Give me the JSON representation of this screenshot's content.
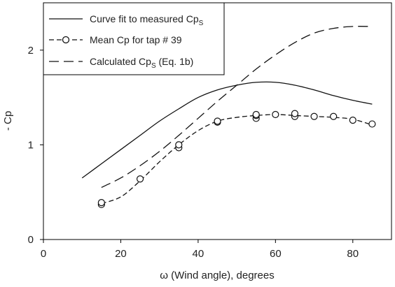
{
  "chart_data": {
    "type": "line",
    "xlabel": "ω (Wind angle), degrees",
    "ylabel": "- Cp",
    "xlim": [
      0,
      90
    ],
    "ylim": [
      0,
      2.5
    ],
    "xticks": [
      0,
      20,
      40,
      60,
      80
    ],
    "yticks": [
      0,
      1,
      2
    ],
    "grid": false,
    "legend_position": "top-left",
    "series": [
      {
        "name": "Curve fit to measured Cp",
        "name_subscript": "S",
        "style": "solid",
        "x": [
          10,
          15,
          20,
          25,
          30,
          35,
          40,
          45,
          50,
          55,
          60,
          65,
          70,
          75,
          80,
          85
        ],
        "y": [
          0.65,
          0.8,
          0.95,
          1.1,
          1.25,
          1.38,
          1.5,
          1.58,
          1.63,
          1.66,
          1.66,
          1.63,
          1.58,
          1.52,
          1.47,
          1.43
        ]
      },
      {
        "name": "Mean Cp for tap # 39",
        "style": "circle-dashed",
        "x": [
          15,
          15,
          25,
          35,
          35,
          45,
          45,
          55,
          55,
          55,
          60,
          65,
          65,
          70,
          75,
          80,
          85
        ],
        "y": [
          0.37,
          0.39,
          0.64,
          0.97,
          1.0,
          1.24,
          1.25,
          1.28,
          1.31,
          1.32,
          1.32,
          1.3,
          1.33,
          1.3,
          1.3,
          1.26,
          1.22
        ],
        "fit_x": [
          15,
          20,
          25,
          30,
          35,
          40,
          45,
          50,
          55,
          60,
          65,
          70,
          75,
          80,
          85
        ],
        "fit_y": [
          0.38,
          0.45,
          0.62,
          0.82,
          1.0,
          1.15,
          1.25,
          1.29,
          1.31,
          1.32,
          1.31,
          1.3,
          1.29,
          1.27,
          1.21
        ]
      },
      {
        "name": "Calculated Cp",
        "name_subscript": "S",
        "name_suffix": " (Eq. 1b)",
        "style": "long-dash",
        "x": [
          15,
          20,
          25,
          30,
          35,
          40,
          45,
          50,
          55,
          60,
          65,
          70,
          75,
          80,
          85
        ],
        "y": [
          0.55,
          0.65,
          0.78,
          0.93,
          1.1,
          1.28,
          1.46,
          1.63,
          1.8,
          1.95,
          2.08,
          2.18,
          2.23,
          2.25,
          2.25
        ]
      }
    ]
  }
}
